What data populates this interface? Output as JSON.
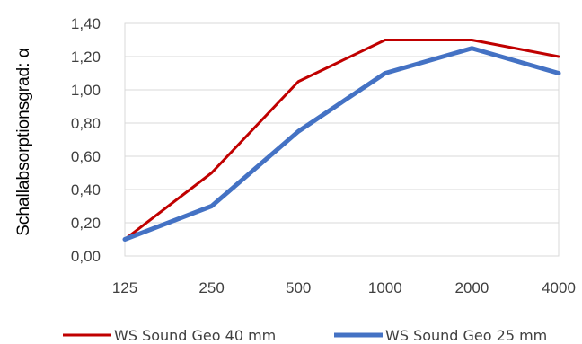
{
  "chart_data": {
    "type": "line",
    "categories": [
      "125",
      "250",
      "500",
      "1000",
      "2000",
      "4000"
    ],
    "ylabel": "Schallabsorptionsgrad: α",
    "ylim": [
      0,
      1.4
    ],
    "yticks": [
      "0,00",
      "0,20",
      "0,40",
      "0,60",
      "0,80",
      "1,00",
      "1,20",
      "1,40"
    ],
    "grid": "horizontal",
    "legend_position": "bottom",
    "series": [
      {
        "name": "WS Sound Geo 40 mm",
        "values": [
          0.1,
          0.5,
          1.05,
          1.3,
          1.3,
          1.2
        ],
        "color": "#C00000",
        "weight": "thin"
      },
      {
        "name": "WS Sound Geo 25 mm",
        "values": [
          0.1,
          0.3,
          0.75,
          1.1,
          1.25,
          1.1
        ],
        "color": "#4472C4",
        "weight": "thick"
      }
    ]
  }
}
